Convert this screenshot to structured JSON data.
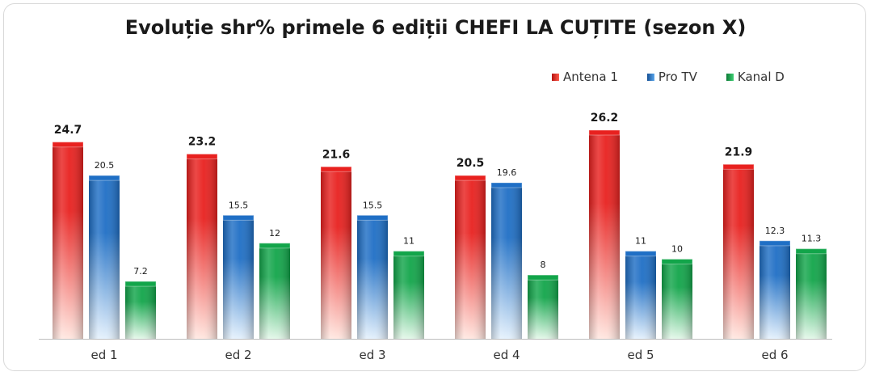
{
  "chart_data": {
    "type": "bar",
    "title": "Evoluție shr% primele 6 ediții CHEFI LA CUȚITE (sezon X)",
    "categories": [
      "ed 1",
      "ed 2",
      "ed 3",
      "ed 4",
      "ed 5",
      "ed 6"
    ],
    "series": [
      {
        "name": "Antena 1",
        "values": [
          24.7,
          23.2,
          21.6,
          20.5,
          26.2,
          21.9
        ],
        "value_labels": [
          "24.7",
          "23.2",
          "21.6",
          "20.5",
          "26.2",
          "21.9"
        ],
        "color": "#e8211f",
        "light": "#ffe6df"
      },
      {
        "name": "Pro TV",
        "values": [
          20.5,
          15.5,
          15.5,
          19.6,
          11,
          12.3
        ],
        "value_labels": [
          "20.5",
          "15.5",
          "15.5",
          "19.6",
          "11",
          "12.3"
        ],
        "color": "#1f6fc5",
        "light": "#e3f0fc"
      },
      {
        "name": "Kanal D",
        "values": [
          7.2,
          12,
          11,
          8,
          10,
          11.3
        ],
        "value_labels": [
          "7.2",
          "12",
          "11",
          "8",
          "10",
          "11.3"
        ],
        "color": "#12a54a",
        "light": "#e2f7e8"
      }
    ],
    "ylim": [
      0,
      26.2
    ],
    "grid": false,
    "legend_position": "top-right",
    "xlabel": "",
    "ylabel": ""
  }
}
